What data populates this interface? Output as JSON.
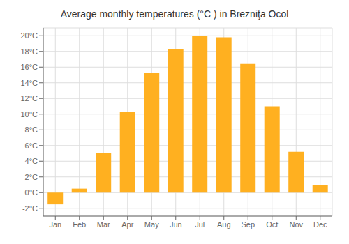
{
  "chart_data": {
    "type": "bar",
    "title": "Average monthly temperatures (°C ) in Brezniţa Ocol",
    "categories": [
      "Jan",
      "Feb",
      "Mar",
      "Apr",
      "May",
      "Jun",
      "Jul",
      "Aug",
      "Sep",
      "Oct",
      "Nov",
      "Dec"
    ],
    "values": [
      -1.5,
      0.5,
      5.0,
      10.3,
      15.3,
      18.3,
      20.0,
      19.8,
      16.4,
      11.0,
      5.2,
      1.0
    ],
    "color": "#FFB020",
    "ylim": [
      -3,
      21
    ],
    "yticks": [
      {
        "value": -2,
        "label": "-2°C"
      },
      {
        "value": 0,
        "label": "0°C"
      },
      {
        "value": 2,
        "label": "2°C"
      },
      {
        "value": 4,
        "label": "4°C"
      },
      {
        "value": 6,
        "label": "6°C"
      },
      {
        "value": 8,
        "label": "8°C"
      },
      {
        "value": 10,
        "label": "10°C"
      },
      {
        "value": 12,
        "label": "12°C"
      },
      {
        "value": 14,
        "label": "14°C"
      },
      {
        "value": 16,
        "label": "16°C"
      },
      {
        "value": 18,
        "label": "18°C"
      },
      {
        "value": 20,
        "label": "20°C"
      }
    ],
    "grid": true
  }
}
